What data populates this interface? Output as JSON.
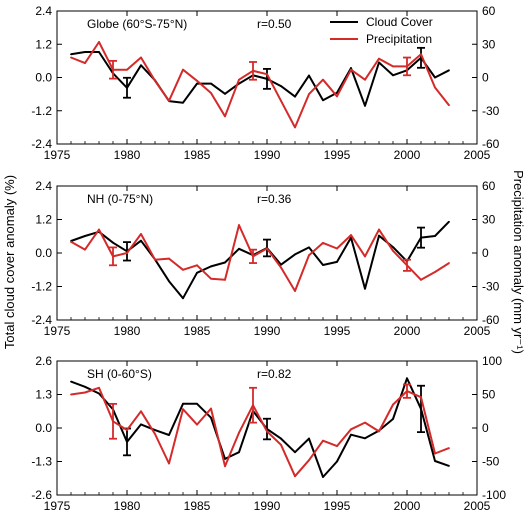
{
  "colors": {
    "cloud": "#000000",
    "precip": "#d42a2a"
  },
  "shared_axis": {
    "ylabel_left": "Total cloud cover anomaly (%)",
    "ylabel_right": "Precipitation anomaly (mm yr⁻¹)"
  },
  "legend": {
    "cloud": "Cloud Cover",
    "precip": "Precipitation"
  },
  "chart_data": [
    {
      "type": "line",
      "title": "Globe (60°S-75°N)",
      "r_label": "r=0.50",
      "xlim": [
        1975,
        2005
      ],
      "x_ticks": [
        1975,
        1980,
        1985,
        1990,
        1995,
        2000,
        2005
      ],
      "y_left": {
        "lim": [
          -2.4,
          2.4
        ],
        "ticks": [
          -2.4,
          -1.2,
          0.0,
          1.2,
          2.4
        ],
        "tick_labels": [
          "-2.4",
          "-1.2",
          "0.0",
          "1.2",
          "2.4"
        ]
      },
      "y_right": {
        "lim": [
          -60,
          60
        ],
        "ticks": [
          -60,
          -30,
          0,
          30,
          60
        ],
        "tick_labels": [
          "-60",
          "-30",
          "0",
          "30",
          "60"
        ]
      },
      "legend_position": "top-right",
      "series": [
        {
          "name": "Cloud Cover",
          "axis": "left",
          "x": [
            1976,
            1977,
            1978,
            1979,
            1980,
            1981,
            1982,
            1983,
            1984,
            1985,
            1986,
            1987,
            1988,
            1989,
            1990,
            1991,
            1992,
            1993,
            1994,
            1995,
            1996,
            1997,
            1998,
            1999,
            2000,
            2001,
            2002,
            2003
          ],
          "y": [
            0.84,
            0.92,
            0.92,
            0.15,
            -0.37,
            0.44,
            -0.1,
            -0.85,
            -0.91,
            -0.22,
            -0.22,
            -0.59,
            -0.22,
            0.08,
            -0.05,
            -0.31,
            -0.69,
            0.07,
            -0.82,
            -0.55,
            0.34,
            -1.02,
            0.54,
            0.08,
            0.26,
            0.71,
            0.0,
            0.26
          ],
          "errorbars": [
            {
              "x": 1980,
              "y": -0.37,
              "err": 0.36
            },
            {
              "x": 1990,
              "y": -0.05,
              "err": 0.36
            },
            {
              "x": 2001,
              "y": 0.71,
              "err": 0.36
            }
          ]
        },
        {
          "name": "Precipitation",
          "axis": "right",
          "x": [
            1976,
            1977,
            1978,
            1979,
            1980,
            1981,
            1982,
            1983,
            1984,
            1985,
            1986,
            1987,
            1988,
            1989,
            1990,
            1991,
            1992,
            1993,
            1994,
            1995,
            1996,
            1997,
            1998,
            1999,
            2000,
            2001,
            2002,
            2003
          ],
          "y": [
            18,
            13,
            32,
            7,
            7,
            18,
            -3,
            -21,
            7,
            -3,
            -14,
            -35,
            -2,
            6,
            3,
            -21,
            -45,
            -15,
            -2,
            -17,
            7,
            -2,
            17,
            10,
            10,
            21,
            -9,
            -25
          ],
          "errorbars": [
            {
              "x": 1979,
              "y": 7,
              "err": 8
            },
            {
              "x": 1989,
              "y": 6,
              "err": 8
            },
            {
              "x": 2000,
              "y": 10,
              "err": 8
            }
          ]
        }
      ]
    },
    {
      "type": "line",
      "title": "NH (0-75°N)",
      "r_label": "r=0.36",
      "xlim": [
        1975,
        2005
      ],
      "x_ticks": [
        1975,
        1980,
        1985,
        1990,
        1995,
        2000,
        2005
      ],
      "y_left": {
        "lim": [
          -2.4,
          2.4
        ],
        "ticks": [
          -2.4,
          -1.2,
          0.0,
          1.2,
          2.4
        ],
        "tick_labels": [
          "-2.4",
          "-1.2",
          "0.0",
          "1.2",
          "2.4"
        ]
      },
      "y_right": {
        "lim": [
          -60,
          60
        ],
        "ticks": [
          -60,
          -30,
          0,
          30,
          60
        ],
        "tick_labels": [
          "-60",
          "-30",
          "0",
          "30",
          "60"
        ]
      },
      "series": [
        {
          "name": "Cloud Cover",
          "axis": "left",
          "x": [
            1976,
            1977,
            1978,
            1979,
            1980,
            1981,
            1982,
            1983,
            1984,
            1985,
            1986,
            1987,
            1988,
            1989,
            1990,
            1991,
            1992,
            1993,
            1994,
            1995,
            1996,
            1997,
            1998,
            1999,
            2000,
            2001,
            2002,
            2003
          ],
          "y": [
            0.43,
            0.61,
            0.76,
            0.37,
            0.06,
            0.44,
            -0.23,
            -1.01,
            -1.62,
            -0.71,
            -0.48,
            -0.34,
            0.15,
            -0.08,
            0.18,
            -0.42,
            -0.05,
            0.2,
            -0.43,
            -0.32,
            0.55,
            -1.28,
            0.62,
            0.21,
            -0.3,
            0.55,
            0.61,
            1.12
          ],
          "errorbars": [
            {
              "x": 1980,
              "y": 0.06,
              "err": 0.33
            },
            {
              "x": 1990,
              "y": 0.18,
              "err": 0.3
            },
            {
              "x": 2001,
              "y": 0.55,
              "err": 0.36
            }
          ]
        },
        {
          "name": "Precipitation",
          "axis": "right",
          "x": [
            1976,
            1977,
            1978,
            1979,
            1980,
            1981,
            1982,
            1983,
            1984,
            1985,
            1986,
            1987,
            1988,
            1989,
            1990,
            1991,
            1992,
            1993,
            1994,
            1995,
            1996,
            1997,
            1998,
            1999,
            2000,
            2001,
            2002,
            2003
          ],
          "y": [
            10,
            3,
            21,
            -3,
            0,
            17,
            -6,
            -5,
            -15,
            -11,
            -23,
            -24,
            25,
            -3,
            4,
            -13,
            -34,
            -2,
            9,
            4,
            16,
            -3,
            21,
            2,
            -11,
            -24,
            -17,
            -9
          ],
          "errorbars": [
            {
              "x": 1979,
              "y": -3,
              "err": 8
            },
            {
              "x": 1989,
              "y": -3,
              "err": 6
            },
            {
              "x": 2000,
              "y": -11,
              "err": 5
            }
          ]
        }
      ]
    },
    {
      "type": "line",
      "title": "SH (0-60°S)",
      "r_label": "r=0.82",
      "xlim": [
        1975,
        2005
      ],
      "x_ticks": [
        1975,
        1980,
        1985,
        1990,
        1995,
        2000,
        2005
      ],
      "y_left": {
        "lim": [
          -2.6,
          2.6
        ],
        "ticks": [
          -2.6,
          -1.3,
          0.0,
          1.3,
          2.6
        ],
        "tick_labels": [
          "-2.6",
          "-1.3",
          "0.0",
          "1.3",
          "2.6"
        ]
      },
      "y_right": {
        "lim": [
          -100,
          100
        ],
        "ticks": [
          -100,
          -50,
          0,
          50,
          100
        ],
        "tick_labels": [
          "-100",
          "-50",
          "0",
          "50",
          "100"
        ]
      },
      "series": [
        {
          "name": "Cloud Cover",
          "axis": "left",
          "x": [
            1976,
            1977,
            1978,
            1979,
            1980,
            1981,
            1982,
            1983,
            1984,
            1985,
            1986,
            1987,
            1988,
            1989,
            1990,
            1991,
            1992,
            1993,
            1994,
            1995,
            1996,
            1997,
            1998,
            1999,
            2000,
            2001,
            2002,
            2003
          ],
          "y": [
            1.8,
            1.6,
            1.34,
            0.72,
            -0.54,
            0.14,
            -0.08,
            -0.27,
            0.94,
            0.94,
            0.4,
            -1.2,
            -0.94,
            0.66,
            -0.04,
            -0.41,
            -0.94,
            -0.41,
            -1.9,
            -1.3,
            -0.26,
            -0.4,
            -0.1,
            0.35,
            1.93,
            0.74,
            -1.28,
            -1.47
          ],
          "errorbars": [
            {
              "x": 1980,
              "y": -0.54,
              "err": 0.52
            },
            {
              "x": 1990,
              "y": -0.04,
              "err": 0.4
            },
            {
              "x": 2001,
              "y": 0.74,
              "err": 0.9
            }
          ]
        },
        {
          "name": "Precipitation",
          "axis": "right",
          "x": [
            1976,
            1977,
            1978,
            1979,
            1980,
            1981,
            1982,
            1983,
            1984,
            1985,
            1986,
            1987,
            1988,
            1989,
            1990,
            1991,
            1992,
            1993,
            1994,
            1995,
            1996,
            1997,
            1998,
            1999,
            2000,
            2001,
            2002,
            2003
          ],
          "y": [
            50,
            53,
            60,
            10,
            -3,
            25,
            -9,
            -53,
            28,
            5,
            29,
            -57,
            -7,
            34,
            -5,
            -25,
            -72,
            -48,
            -19,
            -27,
            -2,
            8,
            -5,
            35,
            55,
            46,
            -38,
            -30
          ],
          "errorbars": [
            {
              "x": 1979,
              "y": 10,
              "err": 26
            },
            {
              "x": 1989,
              "y": 34,
              "err": 26
            },
            {
              "x": 2000,
              "y": 55,
              "err": 10
            }
          ]
        }
      ]
    }
  ]
}
